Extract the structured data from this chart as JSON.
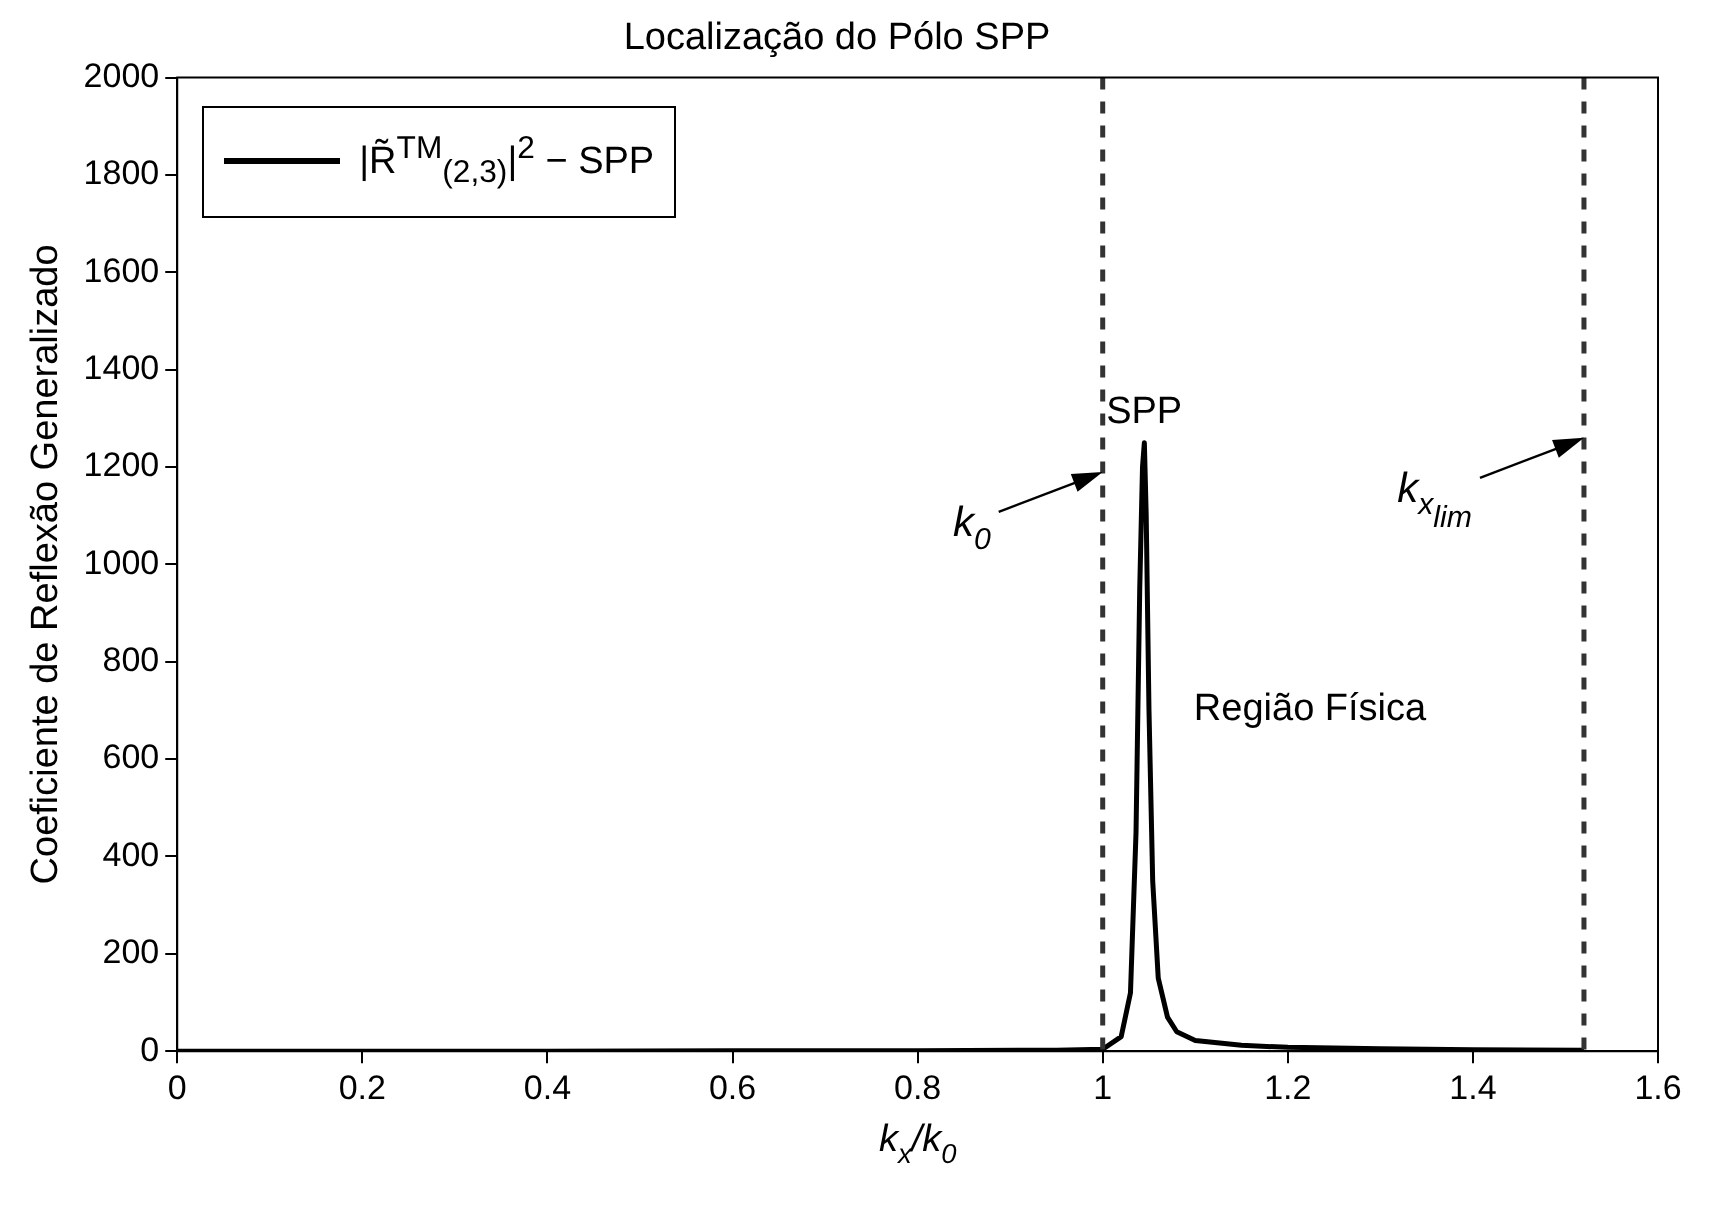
{
  "chart_data": {
    "type": "line",
    "title": "Localização do Pólo SPP",
    "xlabel": "k$_{x}$/k$_{0}$",
    "ylabel": "Coeficiente de Reflexão Generalizado",
    "series": [
      {
        "name": "|R̃$^{TM}$$_{(2,3)}$|$^{2}$ − SPP",
        "color": "#000000",
        "x": [
          0,
          0.2,
          0.4,
          0.6,
          0.8,
          0.95,
          1.0,
          1.02,
          1.03,
          1.036,
          1.04,
          1.043,
          1.045,
          1.047,
          1.05,
          1.054,
          1.06,
          1.07,
          1.08,
          1.1,
          1.15,
          1.2,
          1.3,
          1.4,
          1.52
        ],
        "values": [
          0,
          0,
          0,
          1,
          1,
          2,
          4,
          30,
          120,
          450,
          950,
          1200,
          1250,
          1100,
          700,
          350,
          150,
          70,
          40,
          22,
          12,
          8,
          5,
          3,
          2
        ]
      }
    ],
    "annotations": [
      "SPP",
      "Região Física",
      {
        "text": "k$_{0}$",
        "x": 1,
        "y": 1190
      },
      {
        "text": "k$_{x}$$_{lim}$",
        "x": 1.52,
        "y": 1260
      }
    ],
    "ref_lines": [
      {
        "axis": "x",
        "value": 1,
        "color": "#333333",
        "line_style": "dashed"
      },
      {
        "axis": "x",
        "value": 1.52,
        "color": "#333333",
        "line_style": "dashed"
      }
    ],
    "xlim": [
      0,
      1.6
    ],
    "xticks": [
      0,
      0.2,
      0.4,
      0.6,
      0.8,
      1,
      1.2,
      1.4,
      1.6
    ],
    "ylim": [
      0,
      2000
    ],
    "yticks": [
      0,
      200,
      400,
      600,
      800,
      1000,
      1200,
      1400,
      1600,
      1800,
      2000
    ],
    "grid": false,
    "legend": "top left",
    "marker": "none",
    "line_style": "solid"
  }
}
